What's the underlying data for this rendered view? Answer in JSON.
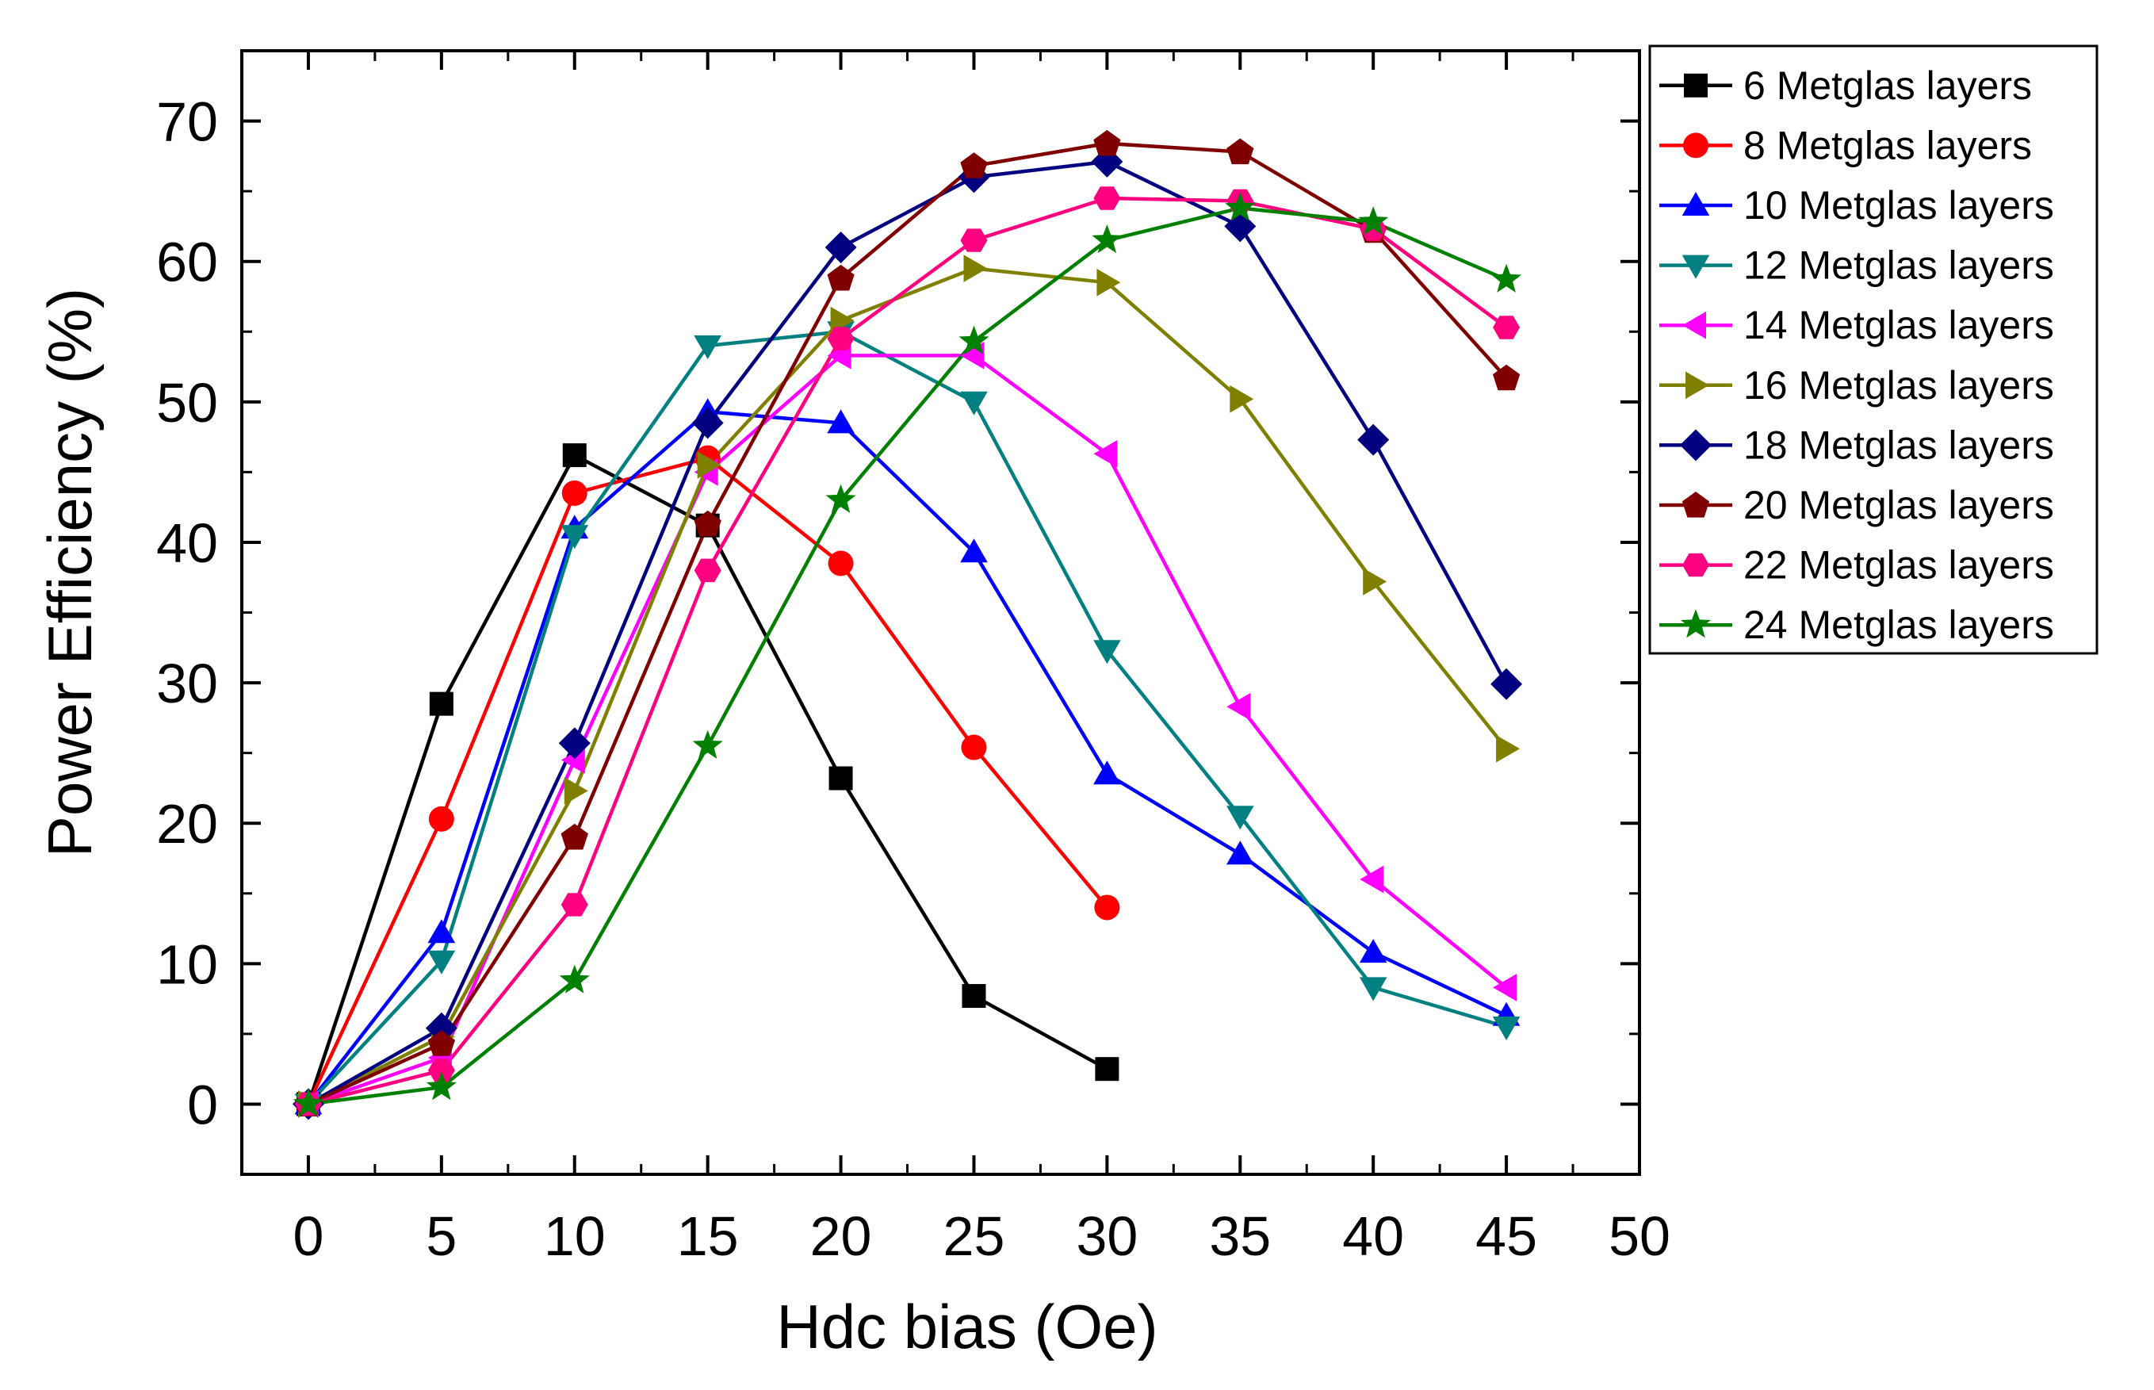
{
  "chart_data": {
    "type": "line",
    "title": "",
    "xlabel": "Hdc bias (Oe)",
    "ylabel": "Power Efficiency (%)",
    "xlim": [
      -2.5,
      50
    ],
    "ylim": [
      -5,
      75
    ],
    "xticks": [
      0,
      5,
      10,
      15,
      20,
      25,
      30,
      35,
      40,
      45,
      50
    ],
    "yticks": [
      0,
      10,
      20,
      30,
      40,
      50,
      60,
      70
    ],
    "legend_position": "right, outside plot",
    "series": [
      {
        "name": "6 Metglas layers",
        "color": "#000000",
        "marker": "square",
        "x": [
          0,
          5,
          10,
          15,
          20,
          25,
          30
        ],
        "values": [
          0,
          28.5,
          46.2,
          41.2,
          23.2,
          7.7,
          2.5
        ]
      },
      {
        "name": "8 Metglas layers",
        "color": "#ff0000",
        "marker": "circle",
        "x": [
          0,
          5,
          10,
          15,
          20,
          25,
          30
        ],
        "values": [
          0,
          20.3,
          43.5,
          46,
          38.5,
          25.4,
          14
        ]
      },
      {
        "name": "10 Metglas layers",
        "color": "#0000ff",
        "marker": "triangle-up",
        "x": [
          0,
          5,
          10,
          15,
          20,
          25,
          30,
          35,
          40,
          45
        ],
        "values": [
          0,
          12.2,
          41,
          49.3,
          48.5,
          39.3,
          23.5,
          17.8,
          10.8,
          6.3
        ]
      },
      {
        "name": "12 Metglas layers",
        "color": "#008080",
        "marker": "triangle-down",
        "x": [
          0,
          5,
          10,
          15,
          20,
          25,
          30,
          35,
          40,
          45
        ],
        "values": [
          0,
          10.2,
          40.5,
          54,
          55,
          50,
          32.3,
          20.5,
          8.3,
          5.5
        ]
      },
      {
        "name": "14 Metglas layers",
        "color": "#ff00ff",
        "marker": "triangle-left",
        "x": [
          0,
          5,
          10,
          15,
          20,
          25,
          30,
          35,
          40,
          45
        ],
        "values": [
          0,
          3.3,
          24.5,
          45,
          53.3,
          53.3,
          46.3,
          28.3,
          16,
          8.3
        ]
      },
      {
        "name": "16 Metglas layers",
        "color": "#808000",
        "marker": "triangle-right",
        "x": [
          0,
          5,
          10,
          15,
          20,
          25,
          30,
          35,
          40,
          45
        ],
        "values": [
          0,
          4.8,
          22.3,
          45.5,
          55.8,
          59.5,
          58.5,
          50.2,
          37.2,
          25.3
        ]
      },
      {
        "name": "18 Metglas layers",
        "color": "#000080",
        "marker": "diamond",
        "x": [
          0,
          5,
          10,
          15,
          20,
          25,
          30,
          35,
          40,
          45
        ],
        "values": [
          0,
          5.4,
          25.7,
          48.5,
          61,
          66,
          67.1,
          62.5,
          47.3,
          29.9
        ]
      },
      {
        "name": "20 Metglas layers",
        "color": "#800000",
        "marker": "pentagon",
        "x": [
          0,
          5,
          10,
          15,
          20,
          25,
          30,
          35,
          40,
          45
        ],
        "values": [
          0,
          4.3,
          19,
          41.3,
          58.8,
          66.8,
          68.4,
          67.8,
          62.2,
          51.7
        ]
      },
      {
        "name": "22 Metglas layers",
        "color": "#ff0080",
        "marker": "hexagon",
        "x": [
          0,
          5,
          10,
          15,
          20,
          25,
          30,
          35,
          40,
          45
        ],
        "values": [
          0,
          2.4,
          14.2,
          38,
          54.5,
          61.5,
          64.5,
          64.3,
          62.3,
          55.3
        ]
      },
      {
        "name": "24 Metglas layers",
        "color": "#008000",
        "marker": "star",
        "x": [
          0,
          5,
          10,
          15,
          20,
          25,
          30,
          35,
          40,
          45
        ],
        "values": [
          0,
          1.2,
          8.8,
          25.5,
          43,
          54.3,
          61.5,
          63.8,
          62.8,
          58.7
        ]
      }
    ]
  }
}
